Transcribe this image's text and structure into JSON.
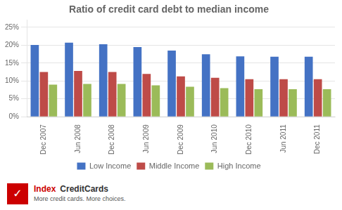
{
  "chart_data": {
    "type": "bar",
    "title": "Ratio of credit card debt to median income",
    "categories": [
      "Dec 2007",
      "Jun 2008",
      "Dec 2008",
      "Jun 2009",
      "Dec 2009",
      "Jun 2010",
      "Dec 2010",
      "Jun 2011",
      "Dec 2011"
    ],
    "series": [
      {
        "name": "Low Income",
        "color": "#4472C4",
        "values": [
          0.201,
          0.207,
          0.203,
          0.195,
          0.185,
          0.175,
          0.169,
          0.168,
          0.168
        ]
      },
      {
        "name": "Middle Income",
        "color": "#BE4B48",
        "values": [
          0.125,
          0.128,
          0.125,
          0.12,
          0.113,
          0.109,
          0.105,
          0.105,
          0.105
        ]
      },
      {
        "name": "High Income",
        "color": "#9BBB59",
        "values": [
          0.09,
          0.092,
          0.092,
          0.088,
          0.084,
          0.08,
          0.077,
          0.077,
          0.077
        ]
      }
    ],
    "ylim": [
      0,
      0.27
    ],
    "yticks": [
      {
        "value": 0,
        "label": "0%"
      },
      {
        "value": 0.05,
        "label": "5%"
      },
      {
        "value": 0.1,
        "label": "10%"
      },
      {
        "value": 0.15,
        "label": "15%"
      },
      {
        "value": 0.2,
        "label": "20%"
      },
      {
        "value": 0.25,
        "label": "25%"
      }
    ],
    "grid": true,
    "legend": "bottom",
    "annotations": [
      "✓",
      "Index",
      "CreditCards",
      "More credit cards. More choices."
    ]
  }
}
